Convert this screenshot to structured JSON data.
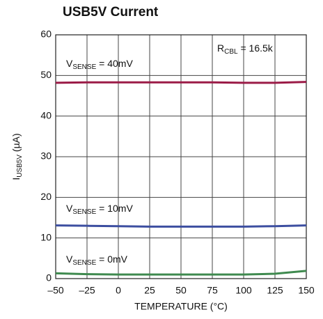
{
  "chart_data": {
    "type": "line",
    "title": "USB5V Current",
    "x_label": "TEMPERATURE (°C)",
    "y_label": [
      "I",
      "USB5V",
      " (µA)"
    ],
    "annotations": [
      {
        "text": [
          "R",
          "CBL",
          " = 16.5k"
        ]
      }
    ],
    "x": [
      -50,
      -25,
      0,
      25,
      50,
      75,
      100,
      125,
      150
    ],
    "series": [
      {
        "name": [
          "V",
          "SENSE",
          " = 40mV"
        ],
        "color": "#9b1b47",
        "values": [
          48.2,
          48.3,
          48.3,
          48.3,
          48.3,
          48.3,
          48.2,
          48.2,
          48.4
        ]
      },
      {
        "name": [
          "V",
          "SENSE",
          " = 10mV"
        ],
        "color": "#3c4ea0",
        "values": [
          13.1,
          13.0,
          12.9,
          12.8,
          12.8,
          12.8,
          12.8,
          12.9,
          13.1
        ]
      },
      {
        "name": [
          "V",
          "SENSE",
          " = 0mV"
        ],
        "color": "#3f8a4f",
        "values": [
          1.3,
          1.1,
          1.0,
          1.0,
          1.0,
          1.0,
          1.0,
          1.2,
          1.9
        ]
      }
    ],
    "xlim": [
      -50,
      150
    ],
    "xticks": [
      {
        "value": -50,
        "label": "–50"
      },
      {
        "value": -25,
        "label": "–25"
      },
      0,
      25,
      50,
      75,
      100,
      125,
      150
    ],
    "ylim": [
      0,
      60
    ],
    "yticks": [
      0,
      10,
      20,
      30,
      40,
      50,
      60
    ],
    "grid": true
  }
}
